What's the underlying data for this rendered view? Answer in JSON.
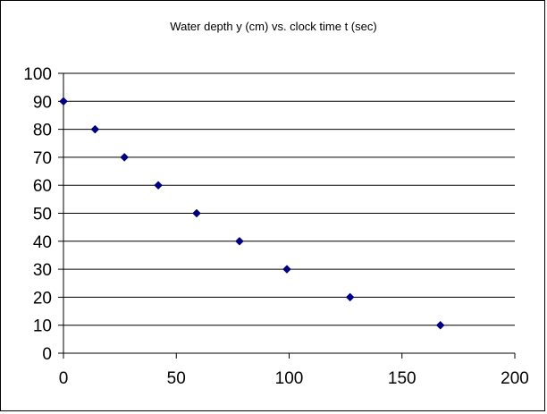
{
  "chart_data": {
    "type": "scatter",
    "title": "Water depth y (cm) vs. clock time t (sec)",
    "xlabel": "",
    "ylabel": "",
    "xlim": [
      0,
      200
    ],
    "ylim": [
      0,
      100
    ],
    "x_ticks": [
      0,
      50,
      100,
      150,
      200
    ],
    "y_ticks": [
      0,
      10,
      20,
      30,
      40,
      50,
      60,
      70,
      80,
      90,
      100
    ],
    "grid": "horizontal",
    "legend": "none",
    "marker": "diamond",
    "series": [
      {
        "x": [
          0,
          14,
          27,
          42,
          59,
          78,
          99,
          127,
          167
        ],
        "y": [
          90,
          80,
          70,
          60,
          50,
          40,
          30,
          20,
          10
        ]
      }
    ],
    "colors": {
      "marker": "#000080",
      "grid": "#000000",
      "axis": "#000000"
    }
  }
}
